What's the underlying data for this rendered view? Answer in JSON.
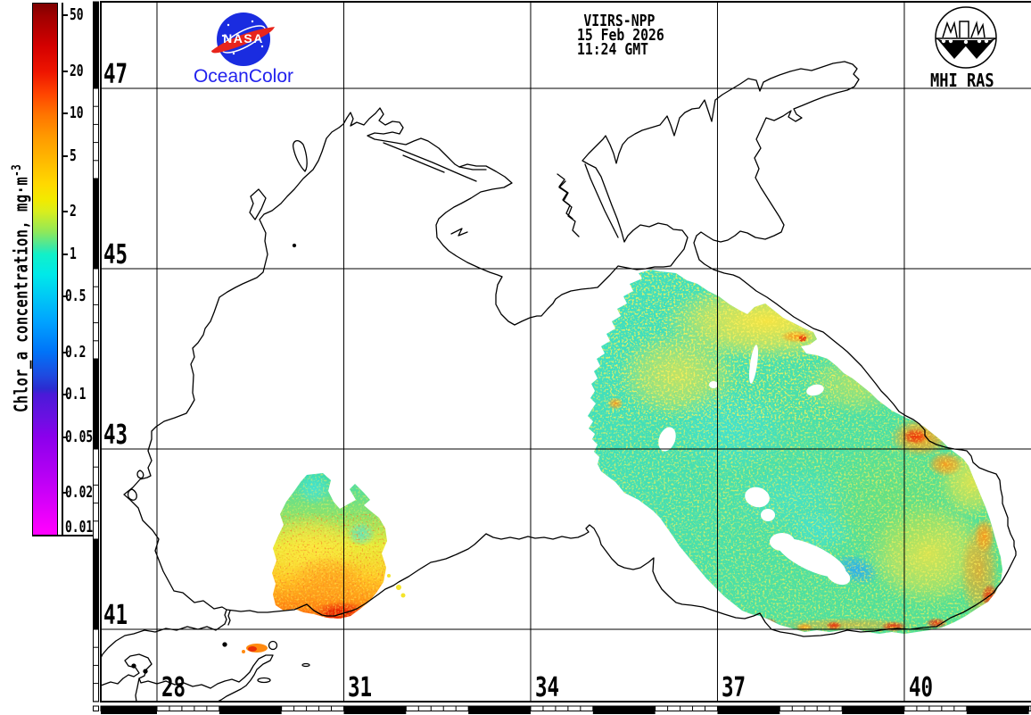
{
  "branding": {
    "nasa_text": "NASA",
    "oceancolor_label": "OceanColor",
    "mhi_label": "MHI RAS"
  },
  "info": {
    "lines": [
      "VIIRS-NPP",
      "15 Feb 2026",
      "11:24 GMT"
    ]
  },
  "colorbar": {
    "title": "Chlor_a concentration, mg·m",
    "title_superscript": "-3",
    "tick_labels": [
      "50",
      "20",
      "10",
      "5",
      "2",
      "1",
      "0.5",
      "0.2",
      "0.1",
      "0.05",
      "0.02",
      "0.01"
    ],
    "gradient": [
      {
        "o": 0.0,
        "c": "#7f0000"
      },
      {
        "o": 0.0235,
        "c": "#9f0000"
      },
      {
        "o": 0.08,
        "c": "#d40000"
      },
      {
        "o": 0.1285,
        "c": "#ee1500"
      },
      {
        "o": 0.17,
        "c": "#ff4400"
      },
      {
        "o": 0.2078,
        "c": "#ff7300"
      },
      {
        "o": 0.25,
        "c": "#ff9900"
      },
      {
        "o": 0.287,
        "c": "#ffb300"
      },
      {
        "o": 0.34,
        "c": "#ffd900"
      },
      {
        "o": 0.37,
        "c": "#f2ea00"
      },
      {
        "o": 0.392,
        "c": "#d8ee1e"
      },
      {
        "o": 0.43,
        "c": "#8fe85a"
      },
      {
        "o": 0.46,
        "c": "#3ae8a8"
      },
      {
        "o": 0.4717,
        "c": "#12f0c8"
      },
      {
        "o": 0.51,
        "c": "#00e9e9"
      },
      {
        "o": 0.551,
        "c": "#00c9f5"
      },
      {
        "o": 0.6,
        "c": "#00a2ff"
      },
      {
        "o": 0.656,
        "c": "#0073f8"
      },
      {
        "o": 0.7,
        "c": "#1e4ae0"
      },
      {
        "o": 0.725,
        "c": "#2b2bd0"
      },
      {
        "o": 0.7357,
        "c": "#4a1ad8"
      },
      {
        "o": 0.78,
        "c": "#6b10e2"
      },
      {
        "o": 0.8152,
        "c": "#8a00ec"
      },
      {
        "o": 0.87,
        "c": "#ab00f2"
      },
      {
        "o": 0.9202,
        "c": "#cb00f8"
      },
      {
        "o": 0.96,
        "c": "#e700fb"
      },
      {
        "o": 0.9883,
        "c": "#fb00fe"
      },
      {
        "o": 1.0,
        "c": "#ff00ff"
      }
    ]
  },
  "axes": {
    "lat_labels": [
      "47",
      "45",
      "43",
      "41"
    ],
    "lon_labels": [
      "28",
      "31",
      "34",
      "37",
      "40"
    ]
  },
  "colors": {
    "accent_blue": "#2222ee",
    "sea_base": "#3adfb6"
  }
}
